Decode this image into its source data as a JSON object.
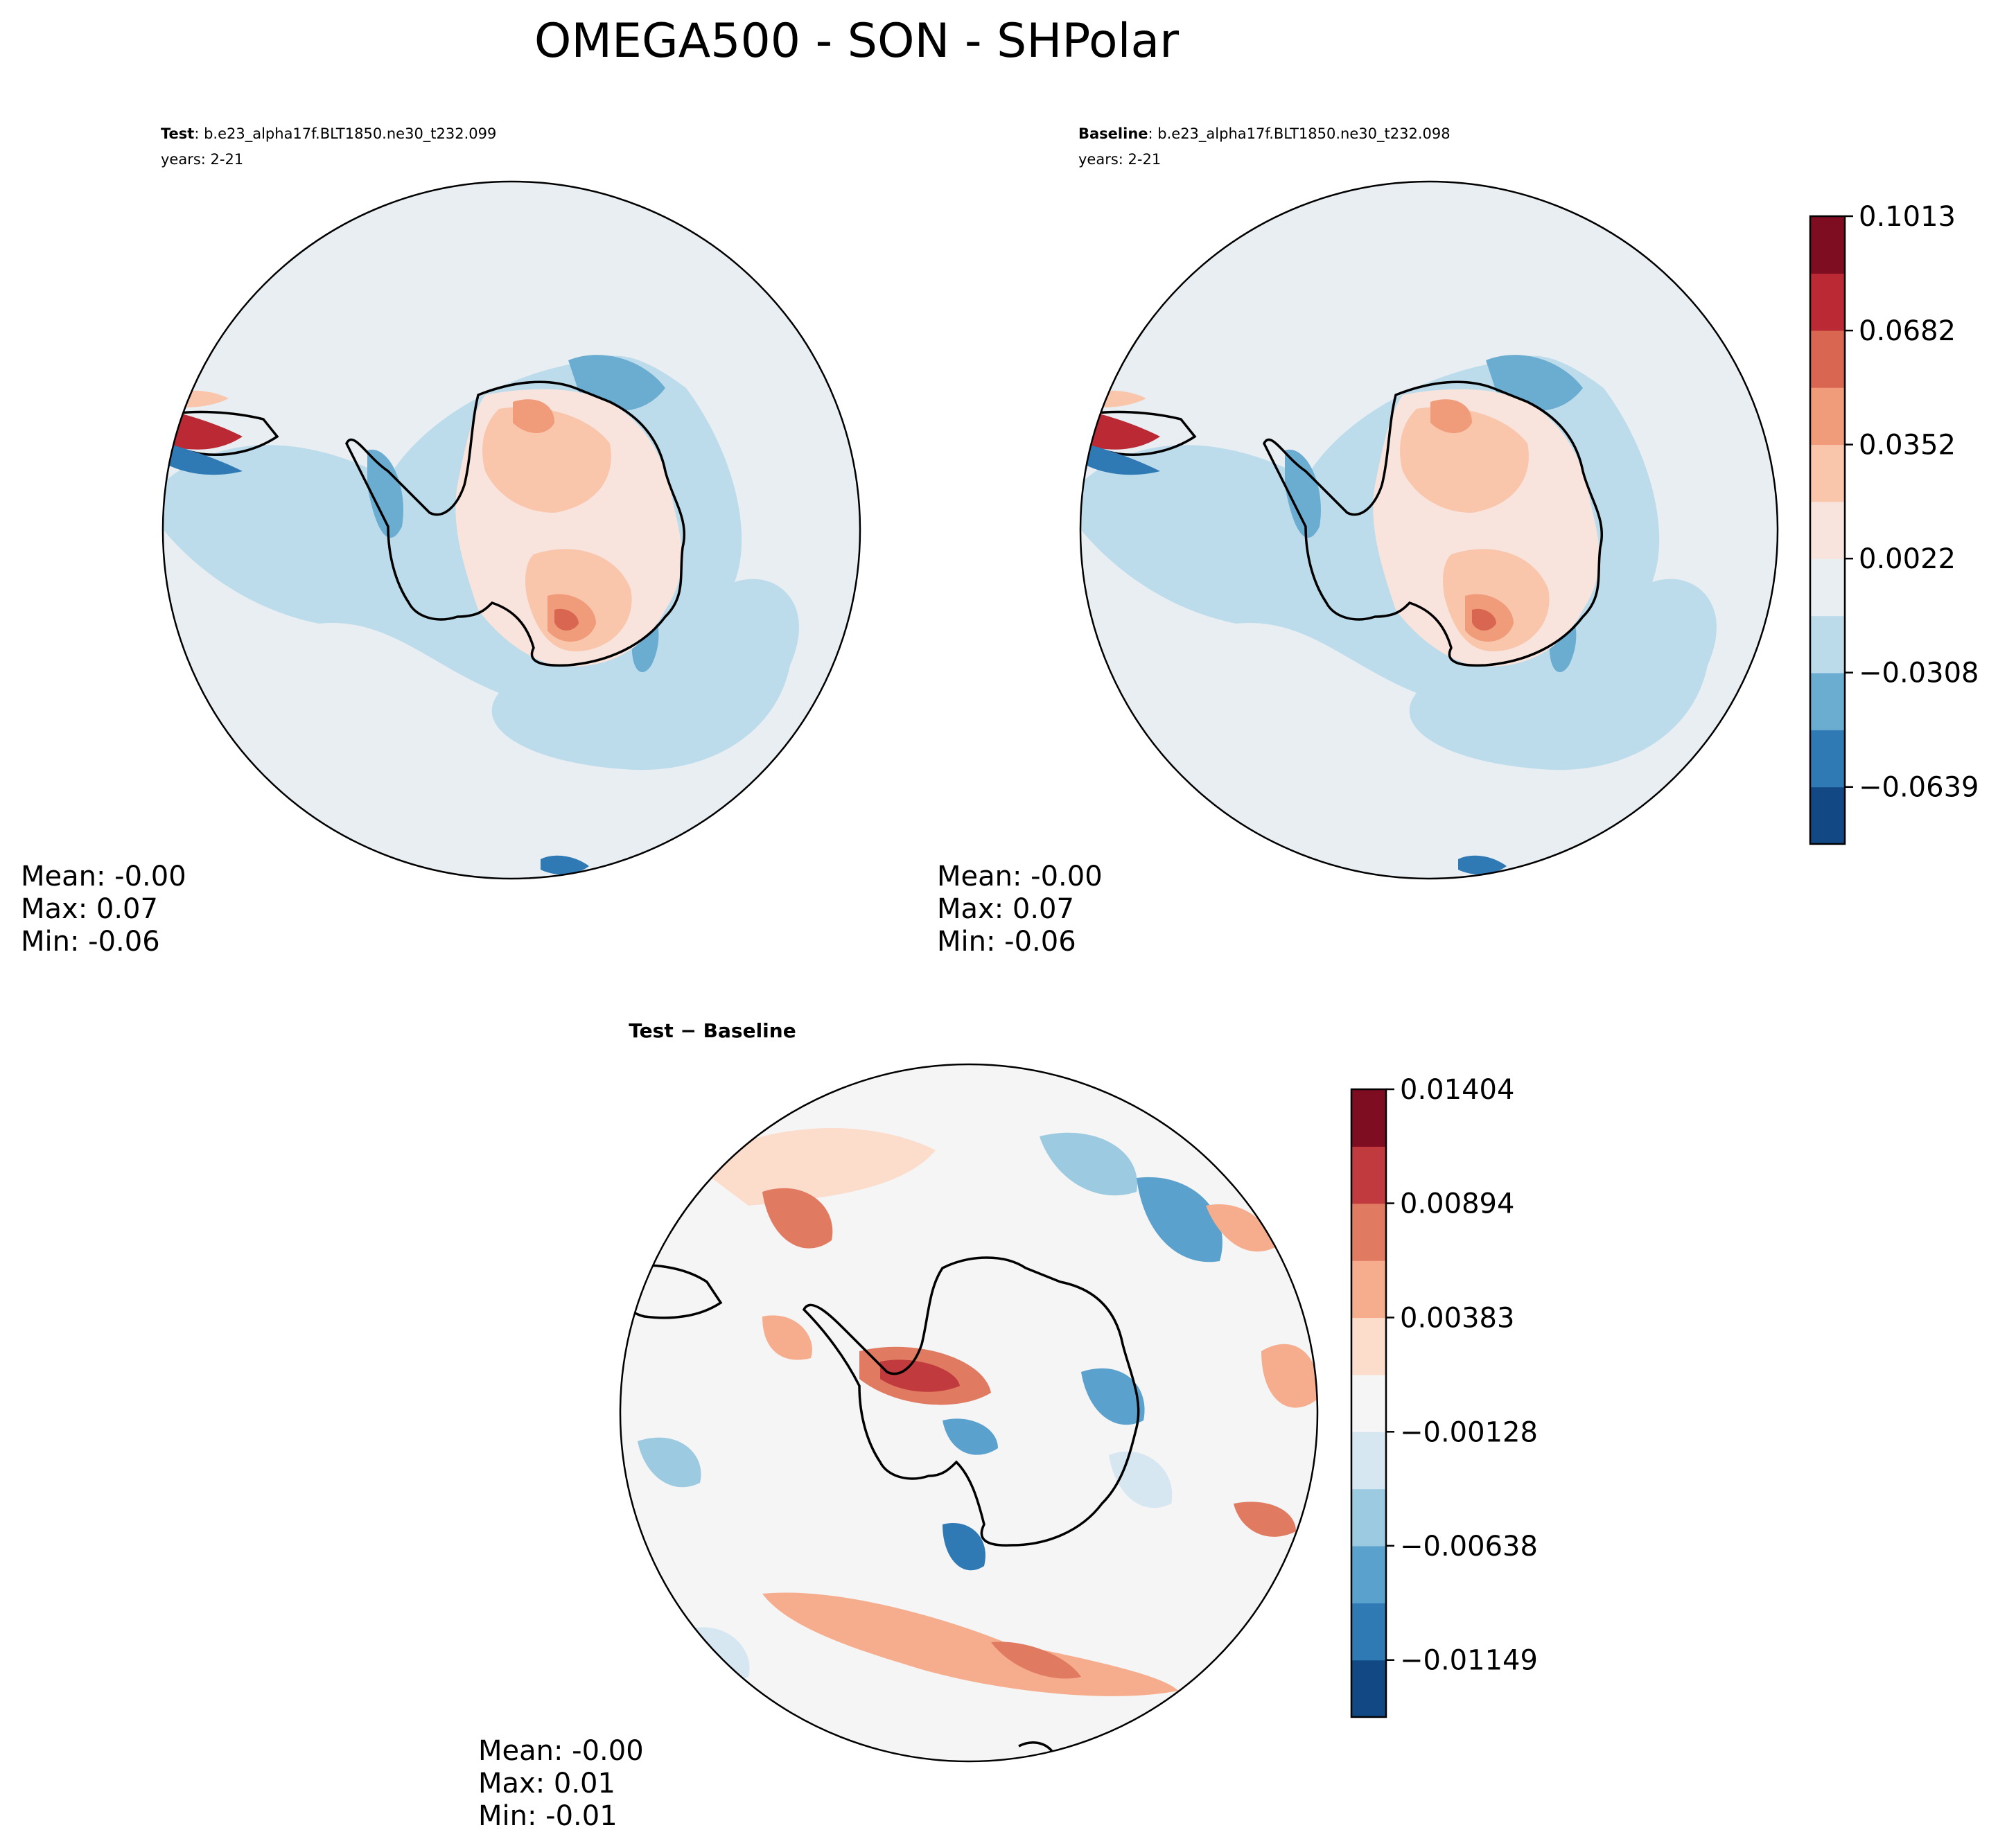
{
  "figure_title": "OMEGA500 - SON - SHPolar",
  "chart_data": [
    {
      "type": "heatmap",
      "projection": "south-polar-stereographic",
      "title_bold": "Test",
      "title_case": ": b.e23_alpha17f.BLT1850.ne30_t232.099",
      "title_years": "years: 2-21",
      "stats": {
        "mean": "Mean: -0.00",
        "max": "Max:  0.07",
        "min": "Min: -0.06"
      },
      "colorbar_ref": "main"
    },
    {
      "type": "heatmap",
      "projection": "south-polar-stereographic",
      "title_bold": "Baseline",
      "title_case": ": b.e23_alpha17f.BLT1850.ne30_t232.098",
      "title_years": "years: 2-21",
      "stats": {
        "mean": "Mean: -0.00",
        "max": "Max:  0.07",
        "min": "Min: -0.06"
      },
      "colorbar_ref": "main"
    },
    {
      "type": "heatmap",
      "projection": "south-polar-stereographic",
      "title_bold": "Test − Baseline",
      "stats": {
        "mean": "Mean: -0.00",
        "max": "Max:  0.01",
        "min": "Min: -0.01"
      },
      "colorbar_ref": "diff"
    }
  ],
  "colorbars": {
    "main": {
      "range": [
        -0.0804,
        0.1013
      ],
      "tick_values": [
        0.1013,
        0.0682,
        0.0352,
        0.0022,
        -0.0308,
        -0.0639
      ],
      "tick_labels": [
        "0.1013",
        "0.0682",
        "0.0352",
        "0.0022",
        "−0.0308",
        "−0.0639"
      ],
      "colors_bottom_to_top": [
        "#124984",
        "#2f79b5",
        "#6bacd1",
        "#bbdaea",
        "#e8eef2",
        "#f8e4dc",
        "#f9c5ab",
        "#f09c7b",
        "#d96651",
        "#bb2a34",
        "#7f0d21"
      ]
    },
    "diff": {
      "range": [
        -0.01404,
        0.01404
      ],
      "tick_values": [
        0.01404,
        0.00894,
        0.00383,
        -0.00128,
        -0.00638,
        -0.01149
      ],
      "tick_labels": [
        "0.01404",
        "0.00894",
        "0.00383",
        "−0.00128",
        "−0.00638",
        "−0.01149"
      ],
      "colors_bottom_to_top": [
        "#124984",
        "#2f79b5",
        "#5aa2cd",
        "#9ccae1",
        "#d6e7f1",
        "#f5f5f5",
        "#fcdccb",
        "#f6ad8d",
        "#e07b62",
        "#c13a3e",
        "#7f0d21"
      ]
    }
  },
  "colors": {
    "land_outline": "#000000",
    "neutral_main": "#e8eef2",
    "neutral_diff": "#f5f5f5"
  }
}
